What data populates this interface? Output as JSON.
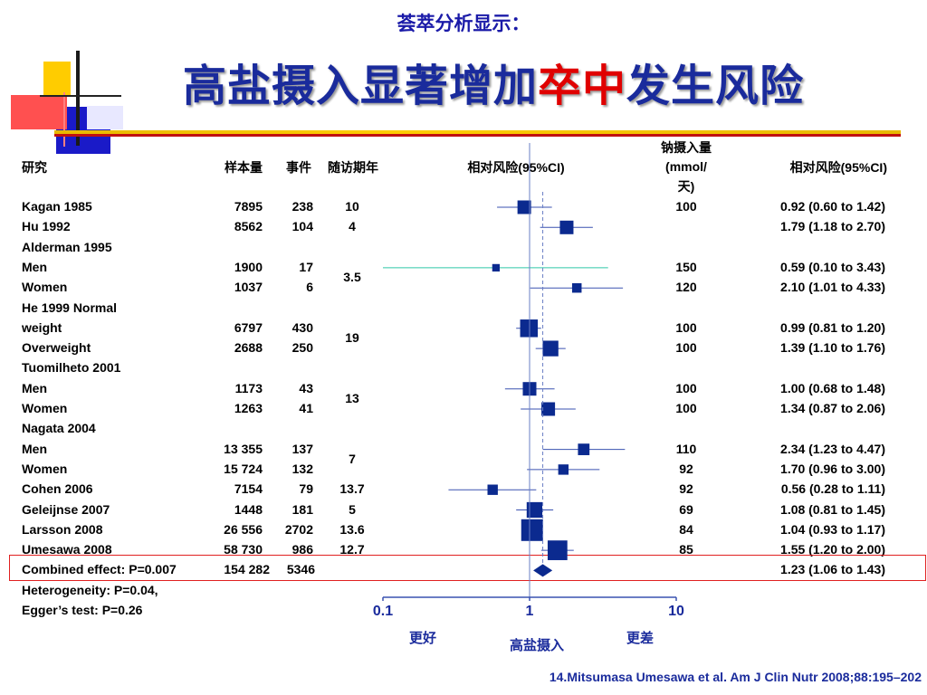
{
  "slide": {
    "subtitle": "荟萃分析显示：",
    "title_main": "高盐摄入显著增加",
    "title_highlight": "卒中",
    "title_tail": "发生风险",
    "citation": "14.Mitsumasa Umesawa  et al. Am J Clin Nutr 2008;88:195–202",
    "colors": {
      "title": "#1a2b9c",
      "highlight": "#e00000",
      "marker": "#0b2a8f",
      "highlight_box": "#e02020"
    }
  },
  "columns": {
    "study": "研究",
    "n": "样本量",
    "events": "事件",
    "followup": "随访期年",
    "rr_header": "相对风险(95%CI)",
    "sodium_l1": "钠摄入量",
    "sodium_l2": "(mmol/",
    "sodium_l3": "天)",
    "rr_text_header": "相对风险(95%CI)"
  },
  "footer": {
    "heterogeneity": "Heterogeneity: P=0.04,",
    "egger": "Egger’s test: P=0.26"
  },
  "chart_data": {
    "type": "forest",
    "x_scale": "log",
    "xlim": [
      0.1,
      10
    ],
    "x_ticks": [
      "0.1",
      "1",
      "10"
    ],
    "reference_line": 1,
    "xlabel": "高盐摄入",
    "left_label": "更好",
    "right_label": "更差",
    "rows": [
      {
        "study": "Kagan 1985",
        "n": "7895",
        "events": "238",
        "sodium": "100",
        "rr": 0.92,
        "lo": 0.6,
        "hi": 1.42,
        "weight": 2,
        "rr_text": "0.92 (0.60 to 1.42)"
      },
      {
        "study": "Hu 1992",
        "n": "8562",
        "events": "104",
        "sodium": "",
        "rr": 1.79,
        "lo": 1.18,
        "hi": 2.7,
        "weight": 2,
        "rr_text": "1.79 (1.18 to 2.70)"
      },
      {
        "study": "Alderman 1995",
        "n": "",
        "events": "",
        "sodium": "",
        "rr_text": ""
      },
      {
        "study": " Men",
        "n": "1900",
        "events": "17",
        "sodium": "150",
        "rr": 0.59,
        "lo": 0.1,
        "hi": 3.43,
        "weight": 0.5,
        "rr_text": "0.59 (0.10 to 3.43)"
      },
      {
        "study": "Women",
        "n": "1037",
        "events": "6",
        "sodium": "120",
        "rr": 2.1,
        "lo": 1.01,
        "hi": 4.33,
        "weight": 1,
        "rr_text": "2.10 (1.01 to 4.33)"
      },
      {
        "study": "He 1999 Normal",
        "n": "",
        "events": "",
        "sodium": "",
        "rr_text": ""
      },
      {
        "study": " weight",
        "n": "6797",
        "events": "430",
        "sodium": "100",
        "rr": 0.99,
        "lo": 0.81,
        "hi": 1.2,
        "weight": 3,
        "rr_text": "0.99 (0.81 to 1.20)"
      },
      {
        "study": "Overweight",
        "n": "2688",
        "events": "250",
        "sodium": "100",
        "rr": 1.39,
        "lo": 1.1,
        "hi": 1.76,
        "weight": 2.5,
        "rr_text": "1.39 (1.10 to 1.76)"
      },
      {
        "study": "Tuomilheto 2001",
        "n": "",
        "events": "",
        "sodium": "",
        "rr_text": ""
      },
      {
        "study": " Men",
        "n": "1173",
        "events": "43",
        "sodium": "100",
        "rr": 1.0,
        "lo": 0.68,
        "hi": 1.48,
        "weight": 2,
        "rr_text": "1.00 (0.68 to 1.48)"
      },
      {
        "study": "Women",
        "n": "1263",
        "events": "41",
        "sodium": "100",
        "rr": 1.34,
        "lo": 0.87,
        "hi": 2.06,
        "weight": 2,
        "rr_text": "1.34 (0.87 to 2.06)"
      },
      {
        "study": "Nagata 2004",
        "n": "",
        "events": "",
        "sodium": "",
        "rr_text": ""
      },
      {
        "study": " Men",
        "n": "13 355",
        "events": "137",
        "sodium": "110",
        "rr": 2.34,
        "lo": 1.23,
        "hi": 4.47,
        "weight": 1.5,
        "rr_text": "2.34 (1.23 to 4.47)"
      },
      {
        "study": "Women",
        "n": "15 724",
        "events": "132",
        "sodium": "92",
        "rr": 1.7,
        "lo": 0.96,
        "hi": 3.0,
        "weight": 1.2,
        "rr_text": "1.70 (0.96 to 3.00)"
      },
      {
        "study": "Cohen 2006",
        "n": "7154",
        "events": "79",
        "followup": "13.7",
        "sodium": "92",
        "rr": 0.56,
        "lo": 0.28,
        "hi": 1.11,
        "weight": 1.2,
        "rr_text": "0.56 (0.28 to 1.11)"
      },
      {
        "study": "Geleijnse 2007",
        "n": "1448",
        "events": "181",
        "followup": "5",
        "sodium": "69",
        "rr": 1.08,
        "lo": 0.81,
        "hi": 1.45,
        "weight": 2.5,
        "rr_text": "1.08 (0.81 to 1.45)"
      },
      {
        "study": "Larsson 2008",
        "n": "26 556",
        "events": "2702",
        "followup": "13.6",
        "sodium": "84",
        "rr": 1.04,
        "lo": 0.93,
        "hi": 1.17,
        "weight": 4,
        "rr_text": "1.04 (0.93 to 1.17)"
      },
      {
        "study": "Umesawa 2008",
        "n": "58 730",
        "events": "986",
        "followup": "12.7",
        "sodium": "85",
        "rr": 1.55,
        "lo": 1.2,
        "hi": 2.0,
        "weight": 3.5,
        "rr_text": "1.55 (1.20 to 2.00)"
      }
    ],
    "followup_groups": [
      {
        "rows": [
          0,
          0
        ],
        "value": "10"
      },
      {
        "rows": [
          1,
          1
        ],
        "value": "4"
      },
      {
        "rows": [
          3,
          4
        ],
        "value": "3.5"
      },
      {
        "rows": [
          6,
          7
        ],
        "value": "19"
      },
      {
        "rows": [
          9,
          10
        ],
        "value": "13"
      },
      {
        "rows": [
          12,
          13
        ],
        "value": "7"
      }
    ],
    "combined": {
      "label": "Combined effect: P=0.007",
      "n": "154 282",
      "events": "5346",
      "rr": 1.23,
      "lo": 1.06,
      "hi": 1.43,
      "rr_text": "1.23 (1.06 to 1.43)"
    }
  }
}
